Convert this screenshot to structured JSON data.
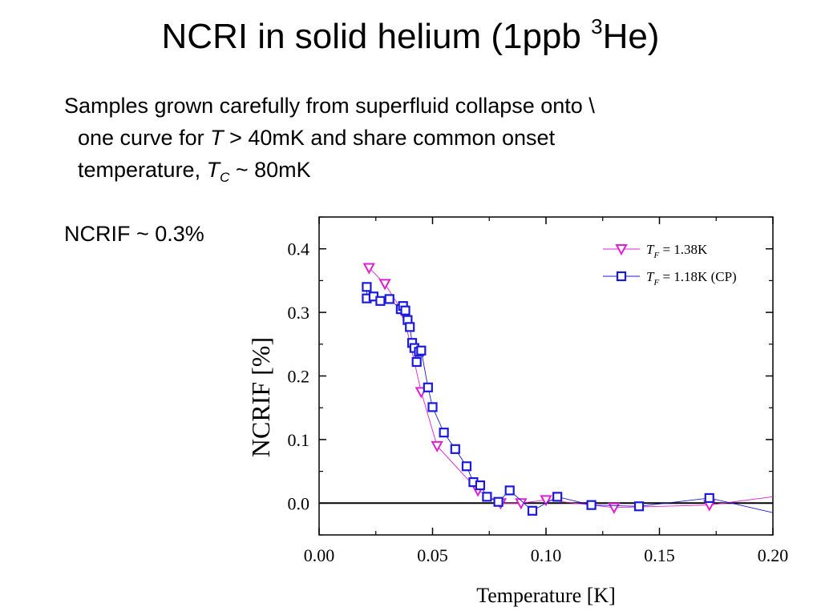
{
  "slide": {
    "title_main": "NCRI in solid helium (1ppb ",
    "title_sup": "3",
    "title_end": "He)",
    "bullet1": {
      "line1": "Samples grown carefully from superfluid collapse onto \\",
      "line2_pre": "one curve for ",
      "line2_var": "T",
      "line2_post": " > 40mK and share common onset",
      "line3_pre": "temperature, ",
      "line3_var": "T",
      "line3_sub": "C",
      "line3_post": " ~ 80mK"
    },
    "bullet2": "NCRIF ~ 0.3%"
  },
  "colors": {
    "series1": "#e020d0",
    "series2": "#1a1ad8",
    "axis": "#000000"
  },
  "chart_data": {
    "type": "scatter",
    "xlabel": "Temperature [K]",
    "ylabel": "NCRIF [%]",
    "xlim": [
      0.0,
      0.2
    ],
    "ylim": [
      -0.05,
      0.45
    ],
    "xticks": [
      0.0,
      0.05,
      0.1,
      0.15,
      0.2
    ],
    "xtick_labels": [
      "0.00",
      "0.05",
      "0.10",
      "0.15",
      "0.20"
    ],
    "yticks": [
      0.0,
      0.1,
      0.2,
      0.3,
      0.4
    ],
    "ytick_labels": [
      "0.0",
      "0.1",
      "0.2",
      "0.3",
      "0.4"
    ],
    "grid": false,
    "legend_position": "top-right",
    "series": [
      {
        "legend_var": "T",
        "legend_sub": "F",
        "legend_rest": " = 1.38K",
        "marker": "triangle-down",
        "color": "#e020d0",
        "x": [
          0.022,
          0.029,
          0.037,
          0.045,
          0.052,
          0.07,
          0.08,
          0.089,
          0.1,
          0.13,
          0.172,
          0.2
        ],
        "y": [
          0.37,
          0.345,
          0.3,
          0.175,
          0.09,
          0.02,
          0.0,
          0.0,
          0.005,
          -0.007,
          -0.003,
          0.01
        ]
      },
      {
        "legend_var": "T",
        "legend_sub": "F",
        "legend_rest": " = 1.18K (CP)",
        "marker": "square",
        "color": "#1a1ad8",
        "x": [
          0.021,
          0.021,
          0.024,
          0.027,
          0.031,
          0.036,
          0.037,
          0.038,
          0.039,
          0.04,
          0.041,
          0.042,
          0.043,
          0.044,
          0.045,
          0.048,
          0.05,
          0.055,
          0.06,
          0.065,
          0.068,
          0.071,
          0.074,
          0.079,
          0.084,
          0.094,
          0.105,
          0.12,
          0.141,
          0.172,
          0.2
        ],
        "y": [
          0.34,
          0.322,
          0.325,
          0.318,
          0.321,
          0.305,
          0.31,
          0.303,
          0.288,
          0.277,
          0.252,
          0.244,
          0.222,
          0.238,
          0.24,
          0.182,
          0.151,
          0.111,
          0.085,
          0.058,
          0.033,
          0.028,
          0.01,
          0.002,
          0.02,
          -0.012,
          0.01,
          -0.003,
          -0.005,
          0.008,
          -0.015
        ]
      }
    ]
  }
}
